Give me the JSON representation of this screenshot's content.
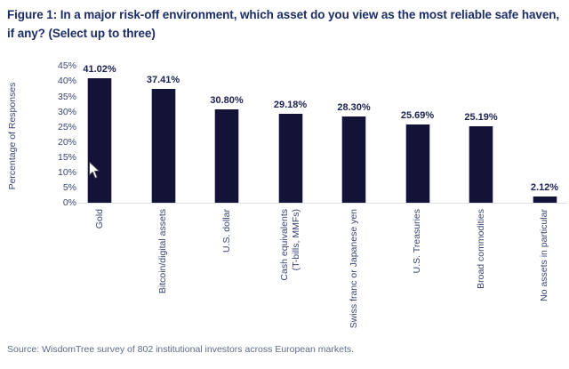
{
  "title": "Figure 1: In a major risk-off environment, which asset do you view as the most reliable safe haven, if any? (Select up to three)",
  "source": "Source: WisdomTree survey of 802 institutional investors across European markets.",
  "colors": {
    "bar": "#151238",
    "title_text": "#1c2d66",
    "value_label_text": "#1b2150",
    "axis_text": "#3a4475",
    "source_text": "#5e6a87"
  },
  "chart_data": {
    "type": "bar",
    "title": "Figure 1: In a major risk-off environment, which asset do you view as the most reliable safe haven, if any? (Select up to three)",
    "xlabel": "",
    "ylabel": "Percentage of Responses",
    "ylim": [
      0,
      45
    ],
    "grid": false,
    "legend": null,
    "categories": [
      "Gold",
      "Bitcoin/digital assets",
      "U.S. dollar",
      "Cash equivalents\n(T-bills, MMFs)",
      "Swiss franc or Japanese yen",
      "U.S. Treasuries",
      "Broad commodities",
      "No assets in particular"
    ],
    "values": [
      41.02,
      37.41,
      30.8,
      29.18,
      28.3,
      25.69,
      25.19,
      2.12
    ],
    "value_labels": [
      "41.02%",
      "37.41%",
      "30.80%",
      "29.18%",
      "28.30%",
      "25.69%",
      "25.19%",
      "2.12%"
    ],
    "ytick_values": [
      45,
      40,
      35,
      30,
      25,
      20,
      15,
      10,
      5,
      0
    ],
    "ytick_labels": [
      "45%",
      "40%",
      "35%",
      "30%",
      "25%",
      "20%",
      "15%",
      "10%",
      "5%",
      "0%"
    ],
    "bar_color": "#151238"
  }
}
